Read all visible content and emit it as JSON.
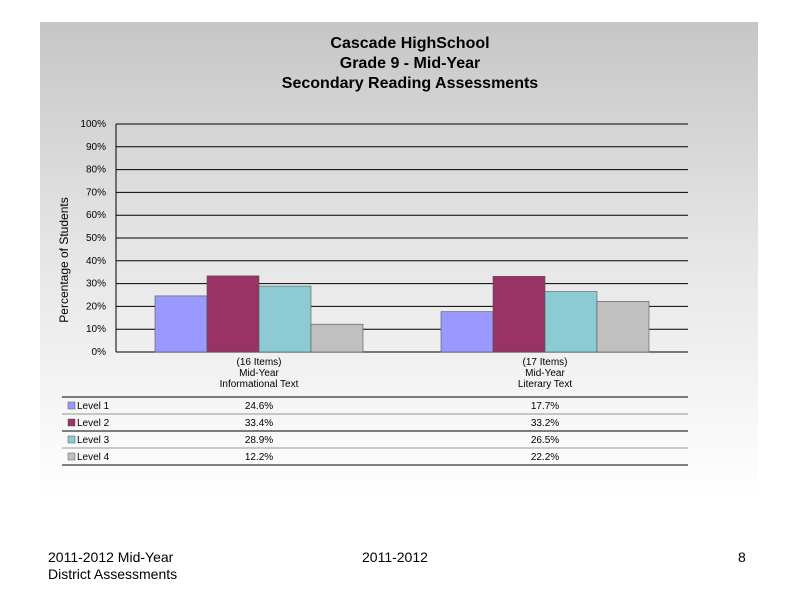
{
  "chart_data": {
    "type": "bar",
    "title": [
      "Cascade HighSchool",
      "Grade 9 - Mid-Year",
      "Secondary Reading Assessments"
    ],
    "ylabel": "Percentage of Students",
    "ylim": [
      0,
      100
    ],
    "yticks": [
      "0%",
      "10%",
      "20%",
      "30%",
      "40%",
      "50%",
      "60%",
      "70%",
      "80%",
      "90%",
      "100%"
    ],
    "grid": true,
    "categories": [
      [
        "(16 Items)",
        "Mid-Year",
        "Informational Text"
      ],
      [
        "(17 Items)",
        "Mid-Year",
        "Literary Text"
      ]
    ],
    "series": [
      {
        "name": "Level 1",
        "color": "#9999ff",
        "values": [
          24.6,
          17.7
        ],
        "labels": [
          "24.6%",
          "17.7%"
        ]
      },
      {
        "name": "Level 2",
        "color": "#993366",
        "values": [
          33.4,
          33.2
        ],
        "labels": [
          "33.4%",
          "33.2%"
        ]
      },
      {
        "name": "Level 3",
        "color": "#8ccbd3",
        "values": [
          28.9,
          26.5
        ],
        "labels": [
          "28.9%",
          "26.5%"
        ]
      },
      {
        "name": "Level 4",
        "color": "#c0c0c0",
        "values": [
          12.2,
          22.2
        ],
        "labels": [
          "12.2%",
          "22.2%"
        ]
      }
    ]
  },
  "footer": {
    "left_line1": "2011-2012  Mid-Year",
    "left_line2": "District Assessments",
    "center": "2011-2012",
    "page": "8"
  }
}
